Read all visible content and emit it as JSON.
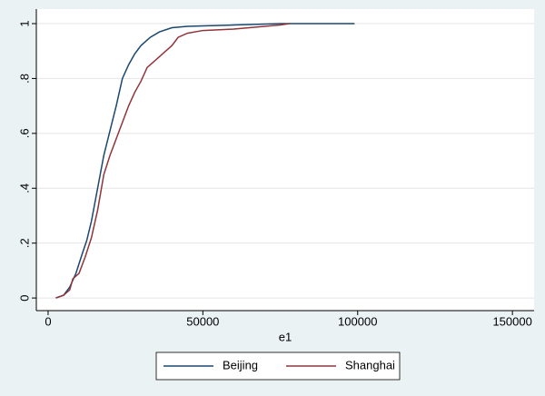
{
  "chart_data": {
    "type": "line",
    "x_label": "e1",
    "xlim": [
      -3800,
      157000
    ],
    "ylim": [
      -0.046,
      1.053
    ],
    "xticks": [
      0,
      50000,
      100000,
      150000
    ],
    "yticks": [
      0,
      {
        "value": 0.2,
        "label": ".2"
      },
      {
        "value": 0.4,
        "label": ".4"
      },
      {
        "value": 0.6,
        "label": ".6"
      },
      {
        "value": 0.8,
        "label": ".8"
      },
      1
    ],
    "grid": true,
    "legend": "bottom",
    "series": [
      {
        "name": "Beijing",
        "color": "#1a476f",
        "x": [
          2500,
          5000,
          7000,
          9000,
          11000,
          12500,
          14000,
          16000,
          18000,
          20000,
          22000,
          24000,
          26000,
          28000,
          30000,
          33000,
          36000,
          40000,
          45000,
          60000,
          75000,
          99000
        ],
        "values": [
          0,
          0.01,
          0.04,
          0.09,
          0.16,
          0.21,
          0.28,
          0.4,
          0.52,
          0.61,
          0.7,
          0.8,
          0.85,
          0.89,
          0.92,
          0.95,
          0.97,
          0.985,
          0.99,
          0.995,
          1,
          1
        ]
      },
      {
        "name": "Shanghai",
        "color": "#90353b",
        "x": [
          2500,
          5000,
          7000,
          8000,
          10000,
          12000,
          14000,
          16000,
          18000,
          20000,
          22000,
          24000,
          26000,
          28000,
          30000,
          32000,
          34000,
          36000,
          38000,
          40000,
          42000,
          45000,
          50000,
          60000,
          65000,
          70000,
          75000,
          78000
        ],
        "values": [
          0,
          0.01,
          0.03,
          0.07,
          0.09,
          0.15,
          0.22,
          0.32,
          0.45,
          0.52,
          0.58,
          0.64,
          0.7,
          0.75,
          0.79,
          0.84,
          0.86,
          0.88,
          0.9,
          0.92,
          0.95,
          0.965,
          0.975,
          0.98,
          0.985,
          0.99,
          0.995,
          1
        ]
      }
    ]
  }
}
